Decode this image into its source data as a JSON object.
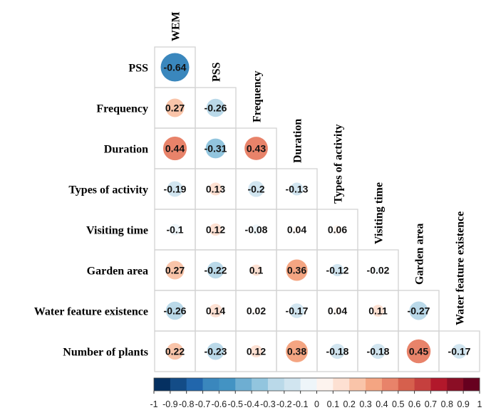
{
  "chart_data": {
    "type": "heatmap",
    "subtype": "correlation-matrix-lower-triangle-circles",
    "variables": [
      "WEM",
      "PSS",
      "Frequency",
      "Duration",
      "Types of activity",
      "Visiting time",
      "Garden area",
      "Water feature existence",
      "Number of plants"
    ],
    "row_labels": [
      "PSS",
      "Frequency",
      "Duration",
      "Types of activity",
      "Visiting time",
      "Garden area",
      "Water feature existence",
      "Number of plants"
    ],
    "column_labels": [
      "WEM",
      "PSS",
      "Frequency",
      "Duration",
      "Types of activity",
      "Visiting time",
      "Garden area",
      "Water feature existence"
    ],
    "values": [
      [
        -0.64
      ],
      [
        0.27,
        -0.26
      ],
      [
        0.44,
        -0.31,
        0.43
      ],
      [
        -0.19,
        0.13,
        -0.2,
        -0.13
      ],
      [
        -0.1,
        0.12,
        -0.08,
        0.04,
        0.06
      ],
      [
        0.27,
        -0.22,
        0.1,
        0.36,
        -0.12,
        -0.02
      ],
      [
        -0.26,
        0.14,
        0.02,
        -0.17,
        0.04,
        0.11,
        -0.27
      ],
      [
        0.22,
        -0.23,
        0.12,
        0.38,
        -0.18,
        -0.18,
        0.45,
        -0.17
      ]
    ],
    "value_labels": [
      [
        "-0.64"
      ],
      [
        "0.27",
        "-0.26"
      ],
      [
        "0.44",
        "-0.31",
        "0.43"
      ],
      [
        "-0.19",
        "0.13",
        "-0.2",
        "-0.13"
      ],
      [
        "-0.1",
        "0.12",
        "-0.08",
        "0.04",
        "0.06"
      ],
      [
        "0.27",
        "-0.22",
        "0.1",
        "0.36",
        "-0.12",
        "-0.02"
      ],
      [
        "-0.26",
        "0.14",
        "0.02",
        "-0.17",
        "0.04",
        "0.11",
        "-0.27"
      ],
      [
        "0.22",
        "-0.23",
        "0.12",
        "0.38",
        "-0.18",
        "-0.18",
        "0.45",
        "-0.17"
      ]
    ],
    "colorbar": {
      "range": [
        -1,
        1
      ],
      "tick_labels": [
        "-1",
        "-0.9",
        "-0.8",
        "-0.7",
        "-0.6",
        "-0.5",
        "-0.4",
        "-0.3",
        "-0.2",
        "-0.1",
        "0",
        "0.1",
        "0.2",
        "0.3",
        "0.4",
        "0.5",
        "0.6",
        "0.7",
        "0.8",
        "0.9",
        "1"
      ],
      "colors": [
        "#053061",
        "#134c87",
        "#2166ac",
        "#3a87bd",
        "#4393c3",
        "#6eaed2",
        "#92c5de",
        "#bad9e9",
        "#d1e5f0",
        "#eef5f9",
        "#fdf3ee",
        "#fde0d2",
        "#f9c4a9",
        "#f4a582",
        "#e8836a",
        "#d6604d",
        "#c5403e",
        "#b2182b",
        "#8b0e25",
        "#67001f"
      ],
      "placement": "bottom"
    },
    "grid_color": "#d3d3d3",
    "title": "",
    "xlabel": "",
    "ylabel": ""
  }
}
